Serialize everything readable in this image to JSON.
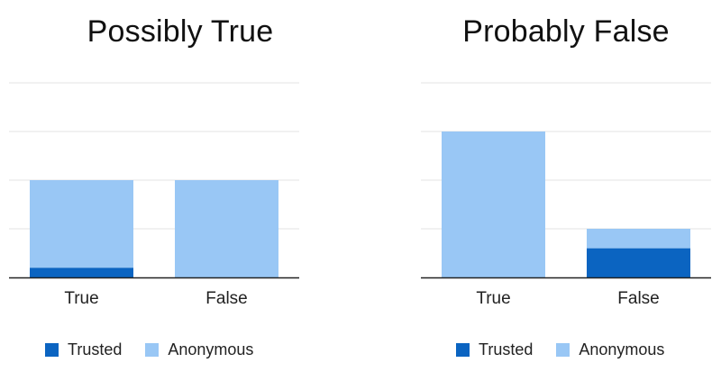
{
  "chart_data": [
    {
      "type": "bar",
      "stacked": true,
      "title": "Possibly True",
      "categories": [
        "True",
        "False"
      ],
      "series": [
        {
          "name": "Trusted",
          "color": "#0b64c1",
          "values": [
            0.2,
            0.0
          ]
        },
        {
          "name": "Anonymous",
          "color": "#99c7f5",
          "values": [
            1.8,
            2.0
          ]
        }
      ],
      "ylim": [
        0,
        4
      ],
      "grid": true,
      "legend": "bottom"
    },
    {
      "type": "bar",
      "stacked": true,
      "title": "Probably False",
      "categories": [
        "True",
        "False"
      ],
      "series": [
        {
          "name": "Trusted",
          "color": "#0b64c1",
          "values": [
            0.0,
            0.6
          ]
        },
        {
          "name": "Anonymous",
          "color": "#99c7f5",
          "values": [
            3.0,
            0.4
          ]
        }
      ],
      "ylim": [
        0,
        4
      ],
      "grid": true,
      "legend": "bottom"
    }
  ]
}
